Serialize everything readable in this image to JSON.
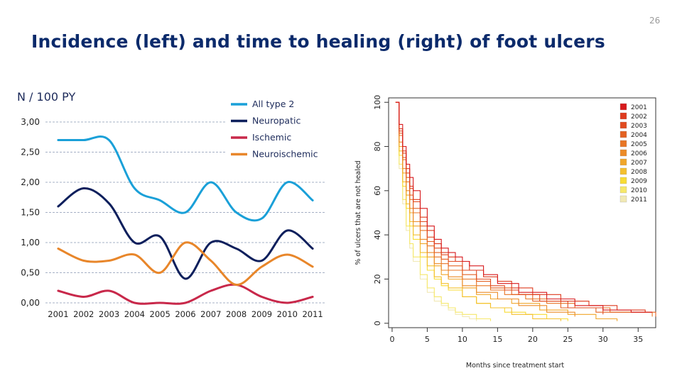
{
  "slide": {
    "title": "Incidence (left) and time to healing (right) of foot ulcers",
    "page_number": "26",
    "unit_label": "N / 100 PY"
  },
  "colors": {
    "title": "#0b2a6b",
    "all_type2": "#1aa0d8",
    "neuropathic": "#0d1f5c",
    "ischemic": "#c8284a",
    "neuroischemic": "#e8862a",
    "grid": "#8896b3"
  },
  "chart_data": [
    {
      "type": "line",
      "title": "",
      "xlabel": "",
      "ylabel": "",
      "categories": [
        "2001",
        "2002",
        "2003",
        "2004",
        "2005",
        "2006",
        "2007",
        "2008",
        "2009",
        "2010",
        "2011"
      ],
      "ylim": [
        0,
        3
      ],
      "yticks": [
        "0,00",
        "0,50",
        "1,00",
        "1,50",
        "2,00",
        "2,50",
        "3,00"
      ],
      "grid": true,
      "legend_position": "top-right",
      "series": [
        {
          "name": "All type 2",
          "color": "#1aa0d8",
          "values": [
            2.7,
            2.7,
            2.7,
            1.9,
            1.7,
            1.5,
            2.0,
            1.5,
            1.4,
            2.0,
            1.7
          ]
        },
        {
          "name": "Neuropatic",
          "color": "#0d1f5c",
          "values": [
            1.6,
            1.9,
            1.65,
            1.0,
            1.1,
            0.4,
            1.0,
            0.9,
            0.7,
            1.2,
            0.9
          ]
        },
        {
          "name": "Ischemic",
          "color": "#c8284a",
          "values": [
            0.2,
            0.1,
            0.2,
            0.0,
            0.0,
            0.0,
            0.2,
            0.3,
            0.1,
            0.0,
            0.1
          ]
        },
        {
          "name": "Neuroischemic",
          "color": "#e8862a",
          "values": [
            0.9,
            0.7,
            0.7,
            0.8,
            0.5,
            1.0,
            0.7,
            0.3,
            0.6,
            0.8,
            0.6
          ]
        }
      ]
    },
    {
      "type": "line",
      "title": "",
      "xlabel": "Months since treatment start",
      "ylabel": "% of ulcers that are not healed",
      "xlim": [
        -0.5,
        37.5
      ],
      "ylim": [
        -2,
        102
      ],
      "xticks": [
        0,
        5,
        10,
        15,
        20,
        25,
        30,
        35
      ],
      "yticks": [
        0,
        20,
        40,
        60,
        80,
        100
      ],
      "grid": false,
      "legend_position": "top-right",
      "series": [
        {
          "name": "2001",
          "color": "#d7191c",
          "x": [
            0.5,
            1,
            1.5,
            2,
            2.5,
            3,
            4,
            5,
            6,
            7,
            8,
            9,
            10,
            11,
            13,
            15,
            18,
            22,
            26,
            30,
            34,
            37
          ],
          "values": [
            100,
            90,
            80,
            72,
            66,
            60,
            52,
            44,
            38,
            34,
            32,
            30,
            28,
            26,
            22,
            18,
            14,
            11,
            8,
            6,
            5,
            5
          ]
        },
        {
          "name": "2002",
          "color": "#de3a1e",
          "x": [
            0.5,
            1,
            1.5,
            2,
            2.5,
            3,
            4,
            5,
            6,
            7,
            8,
            9,
            11,
            13,
            15,
            17,
            20,
            24,
            28,
            32,
            36
          ],
          "values": [
            100,
            88,
            78,
            70,
            62,
            56,
            48,
            42,
            36,
            32,
            30,
            28,
            24,
            21,
            19,
            16,
            13,
            10,
            8,
            6,
            5
          ]
        },
        {
          "name": "2003",
          "color": "#e14b20",
          "x": [
            0.5,
            1,
            1.5,
            2,
            2.5,
            3,
            4,
            5,
            6,
            7,
            8,
            10,
            12,
            14,
            16,
            18,
            21,
            25,
            30
          ],
          "values": [
            100,
            87,
            77,
            68,
            61,
            55,
            46,
            39,
            34,
            31,
            28,
            24,
            20,
            17,
            15,
            13,
            10,
            7,
            4
          ]
        },
        {
          "name": "2004",
          "color": "#e46222",
          "x": [
            0.5,
            1,
            1.5,
            2,
            2.5,
            3,
            4,
            5,
            6,
            7,
            8,
            10,
            12,
            14,
            17,
            20,
            24,
            29,
            37.5
          ],
          "values": [
            100,
            86,
            75,
            66,
            58,
            52,
            44,
            37,
            32,
            29,
            26,
            22,
            19,
            16,
            13,
            10,
            7,
            5,
            3
          ]
        },
        {
          "name": "2005",
          "color": "#e87625",
          "x": [
            0.5,
            1,
            1.5,
            2,
            2.5,
            3,
            4,
            5,
            6,
            7,
            8,
            10,
            12,
            14,
            16,
            19,
            22,
            26,
            31,
            37
          ],
          "values": [
            100,
            85,
            74,
            64,
            56,
            50,
            42,
            35,
            30,
            27,
            24,
            20,
            17,
            15,
            13,
            11,
            9,
            7,
            5,
            3
          ]
        },
        {
          "name": "2006",
          "color": "#ec8b27",
          "x": [
            0.5,
            1,
            1.5,
            2,
            2.5,
            3,
            4,
            5,
            6,
            7,
            8,
            10,
            12,
            15,
            18,
            22,
            26
          ],
          "values": [
            100,
            82,
            70,
            60,
            52,
            46,
            38,
            32,
            27,
            24,
            21,
            17,
            14,
            11,
            8,
            5,
            3
          ]
        },
        {
          "name": "2007",
          "color": "#f0a62a",
          "x": [
            0.5,
            1,
            1.5,
            2,
            2.5,
            3,
            4,
            5,
            6,
            7,
            8,
            10,
            12,
            14,
            17,
            21,
            25,
            29,
            32
          ],
          "values": [
            100,
            80,
            68,
            58,
            50,
            44,
            36,
            30,
            26,
            22,
            20,
            16,
            13,
            11,
            9,
            6,
            4,
            2,
            1
          ]
        },
        {
          "name": "2008",
          "color": "#f4c02e",
          "x": [
            0.5,
            1,
            1.5,
            2,
            2.5,
            3,
            4,
            5,
            6,
            7,
            8,
            10,
            12,
            14,
            17,
            20,
            24
          ],
          "values": [
            100,
            78,
            64,
            54,
            46,
            40,
            32,
            26,
            21,
            18,
            16,
            12,
            9,
            7,
            4,
            2,
            1
          ]
        },
        {
          "name": "2009",
          "color": "#f8dc34",
          "x": [
            0.5,
            1,
            1.5,
            2,
            2.5,
            3,
            4,
            5,
            6,
            7,
            8,
            10,
            12,
            14,
            16,
            19,
            22,
            25
          ],
          "values": [
            100,
            76,
            62,
            52,
            44,
            38,
            30,
            24,
            20,
            17,
            15,
            12,
            9,
            7,
            5,
            4,
            2,
            1
          ]
        },
        {
          "name": "2010",
          "color": "#f6e86a",
          "x": [
            0.5,
            1,
            1.5,
            2,
            2.5,
            3,
            4,
            5,
            6,
            7,
            8,
            9,
            10,
            12,
            14
          ],
          "values": [
            100,
            72,
            56,
            44,
            36,
            30,
            22,
            16,
            12,
            9,
            7,
            5,
            4,
            2,
            1
          ]
        },
        {
          "name": "2011",
          "color": "#f1e9b4",
          "x": [
            0.5,
            1,
            1.5,
            2,
            2.5,
            3,
            4,
            5,
            6,
            7,
            8,
            9,
            10,
            11,
            12
          ],
          "values": [
            100,
            70,
            54,
            42,
            34,
            28,
            20,
            14,
            10,
            8,
            6,
            4,
            3,
            2,
            1
          ]
        }
      ]
    }
  ]
}
